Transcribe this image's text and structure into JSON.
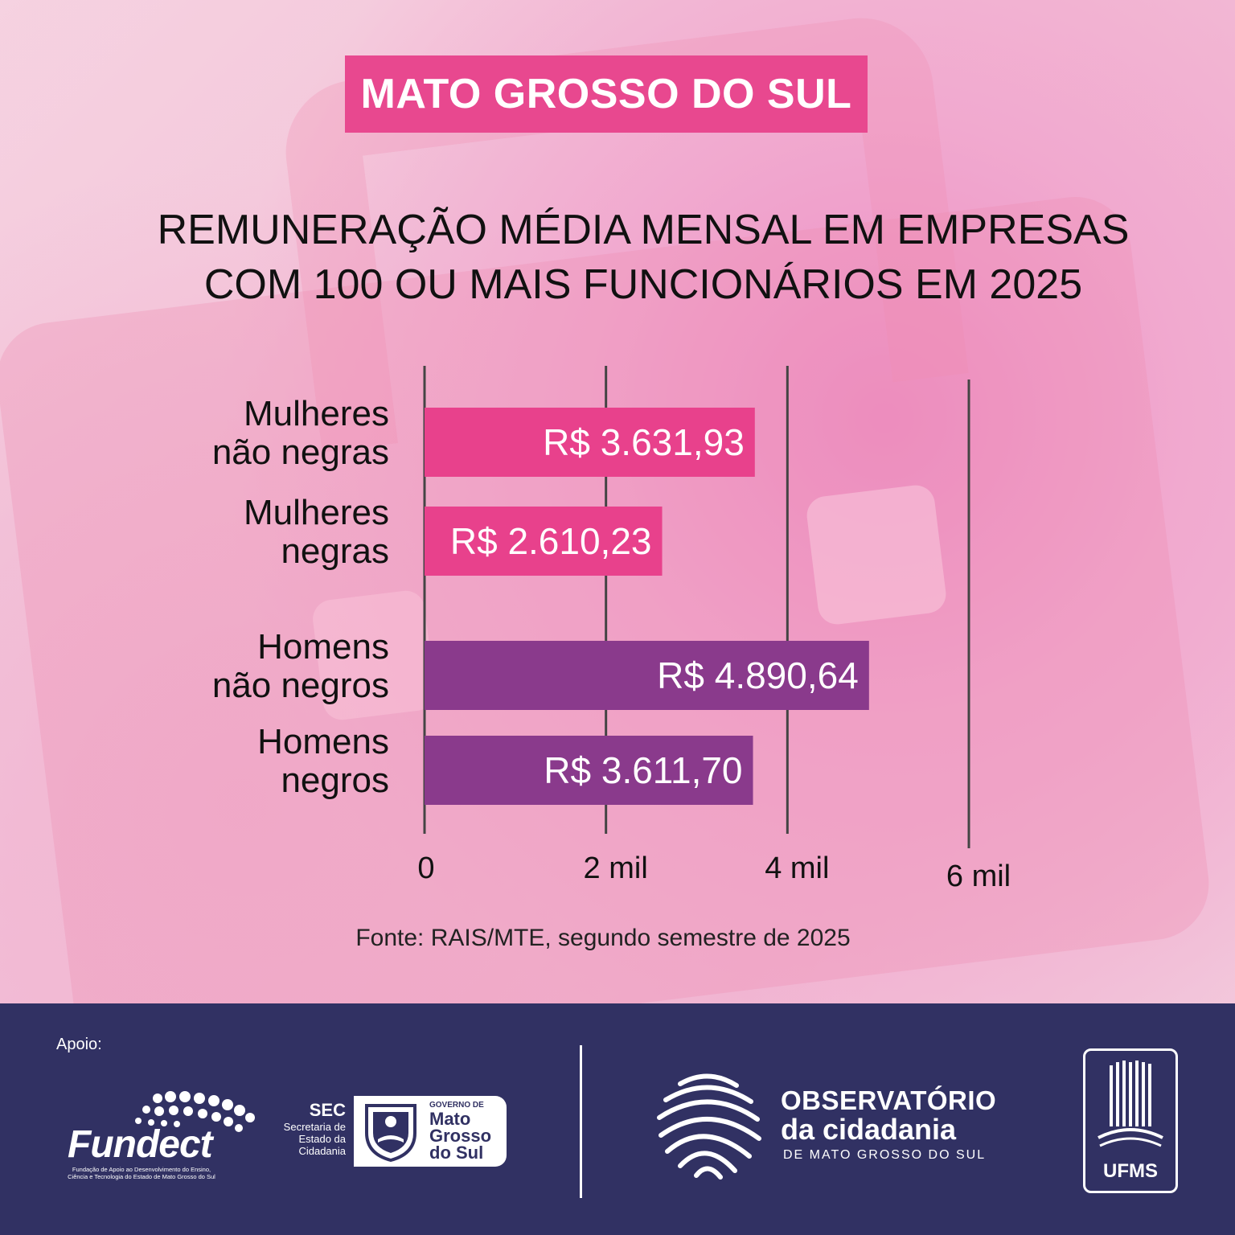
{
  "banner": {
    "label": "MATO GROSSO DO SUL"
  },
  "title": {
    "line1": "REMUNERAÇÃO MÉDIA MENSAL  EM EMPRESAS",
    "line2": "COM 100 OU MAIS FUNCIONÁRIOS EM 2025"
  },
  "chart_data": {
    "type": "bar",
    "orientation": "horizontal",
    "categories": [
      [
        "Mulheres",
        "não negras"
      ],
      [
        "Mulheres",
        "negras"
      ],
      [
        "Homens",
        "não negros"
      ],
      [
        "Homens",
        "negros"
      ]
    ],
    "values": [
      3631.93,
      2610.23,
      4890.64,
      3611.7
    ],
    "value_labels": [
      "R$ 3.631,93",
      "R$ 2.610,23",
      "R$ 4.890,64",
      "R$ 3.611,70"
    ],
    "colors": [
      "#e8418c",
      "#e8418c",
      "#8a3a8c",
      "#8a3a8c"
    ],
    "xlim": [
      0,
      6000
    ],
    "ticks": [
      0,
      2000,
      4000,
      6000
    ],
    "tick_labels": [
      "0",
      "2 mil",
      "4 mil",
      "6 mil"
    ],
    "grid": true,
    "title": "REMUNERAÇÃO MÉDIA MENSAL  EM EMPRESAS COM 100 OU MAIS FUNCIONÁRIOS EM 2025"
  },
  "source": "Fonte: RAIS/MTE, segundo semestre de 2025",
  "footer": {
    "apoio": "Apoio:",
    "fundect": {
      "name": "Fundect",
      "subtitle_line1": "Fundação de Apoio ao Desenvolvimento do Ensino,",
      "subtitle_line2": "Ciência e Tecnologia do Estado de Mato Grosso do Sul"
    },
    "sec": {
      "abbr": "SEC",
      "line1": "Secretaria de",
      "line2": "Estado da",
      "line3": "Cidadania",
      "gov_small": "GOVERNO DE",
      "gov_line1": "Mato",
      "gov_line2": "Grosso",
      "gov_line3": "do Sul"
    },
    "observatorio": {
      "line1": "OBSERVATÓRIO",
      "line2": "da cidadania",
      "line3": "DE MATO GROSSO DO SUL"
    },
    "ufms": "UFMS"
  },
  "colors": {
    "banner": "#e8488f",
    "footer": "#313163"
  }
}
